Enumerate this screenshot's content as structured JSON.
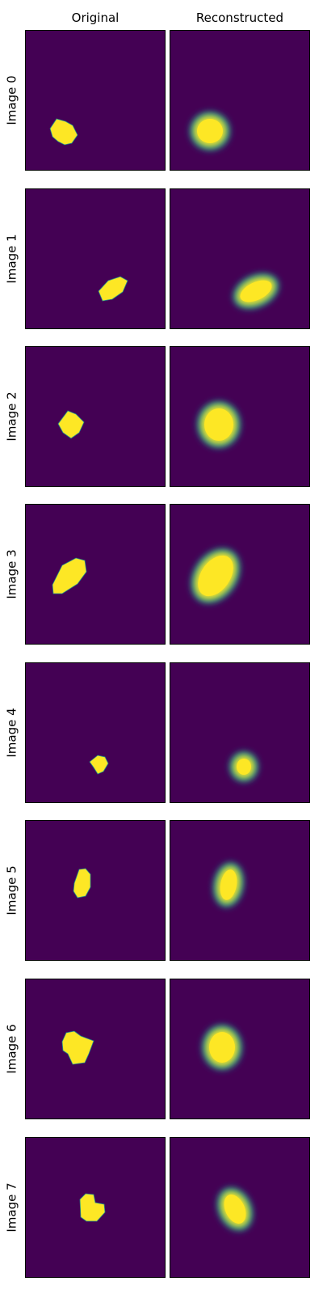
{
  "headers": [
    "Original",
    "Reconstructed"
  ],
  "rows": [
    {
      "label": "Image 0"
    },
    {
      "label": "Image 1"
    },
    {
      "label": "Image 2"
    },
    {
      "label": "Image 3"
    },
    {
      "label": "Image 4"
    },
    {
      "label": "Image 5"
    },
    {
      "label": "Image 6"
    },
    {
      "label": "Image 7"
    }
  ],
  "colors": {
    "background": "#440154",
    "foreground": "#fde725",
    "edge": "#21918c"
  }
}
